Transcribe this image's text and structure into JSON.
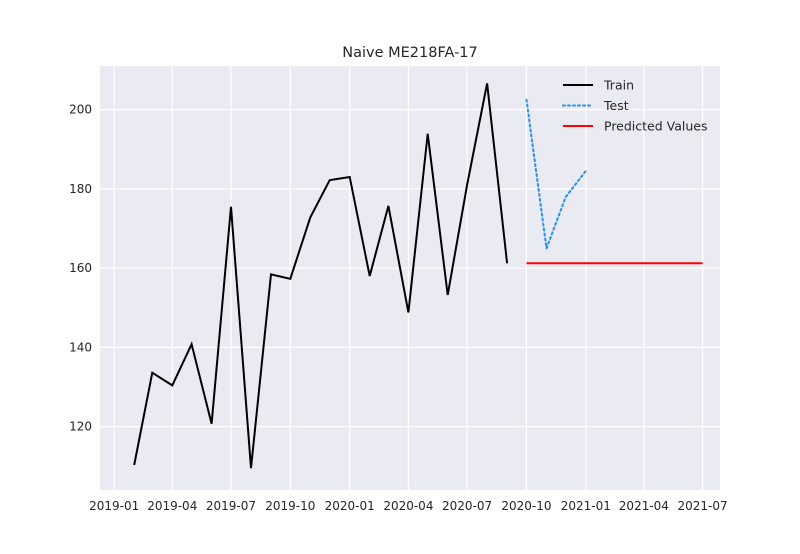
{
  "chart_data": {
    "type": "line",
    "title": "Naive ME218FA-17",
    "xlabel": "",
    "ylabel": "",
    "grid": true,
    "background": "#EAEAF2",
    "legend_position": "top-right",
    "xlim": [
      "2018-12-10",
      "2021-07-28"
    ],
    "ylim": [
      104,
      211
    ],
    "x_ticks": [
      "2019-01",
      "2019-04",
      "2019-07",
      "2019-10",
      "2020-01",
      "2020-04",
      "2020-07",
      "2020-10",
      "2021-01",
      "2021-04",
      "2021-07"
    ],
    "y_ticks": [
      120,
      140,
      160,
      180,
      200
    ],
    "series": [
      {
        "name": "Train",
        "color": "#000000",
        "style": "solid",
        "x": [
          "2019-02",
          "2019-03",
          "2019-04",
          "2019-05",
          "2019-06",
          "2019-07",
          "2019-08",
          "2019-09",
          "2019-10",
          "2019-11",
          "2019-12",
          "2020-01",
          "2020-02",
          "2020-03",
          "2020-04",
          "2020-05",
          "2020-06",
          "2020-07",
          "2020-08",
          "2020-09"
        ],
        "y": [
          110.3,
          133.6,
          130.4,
          140.8,
          120.7,
          175.5,
          109.5,
          158.4,
          157.3,
          172.8,
          182.2,
          183.0,
          158.0,
          175.7,
          148.8,
          193.9,
          153.2,
          181.0,
          206.6,
          161.2
        ]
      },
      {
        "name": "Test",
        "color": "#1E90FF",
        "style": "dotted",
        "x": [
          "2020-10",
          "2020-11",
          "2020-12",
          "2021-01"
        ],
        "y": [
          202.5,
          165.0,
          178.0,
          184.5
        ]
      },
      {
        "name": "Predicted Values",
        "color": "#FF0000",
        "style": "solid",
        "x": [
          "2020-10",
          "2021-07"
        ],
        "y": [
          161.2,
          161.2
        ]
      }
    ]
  }
}
